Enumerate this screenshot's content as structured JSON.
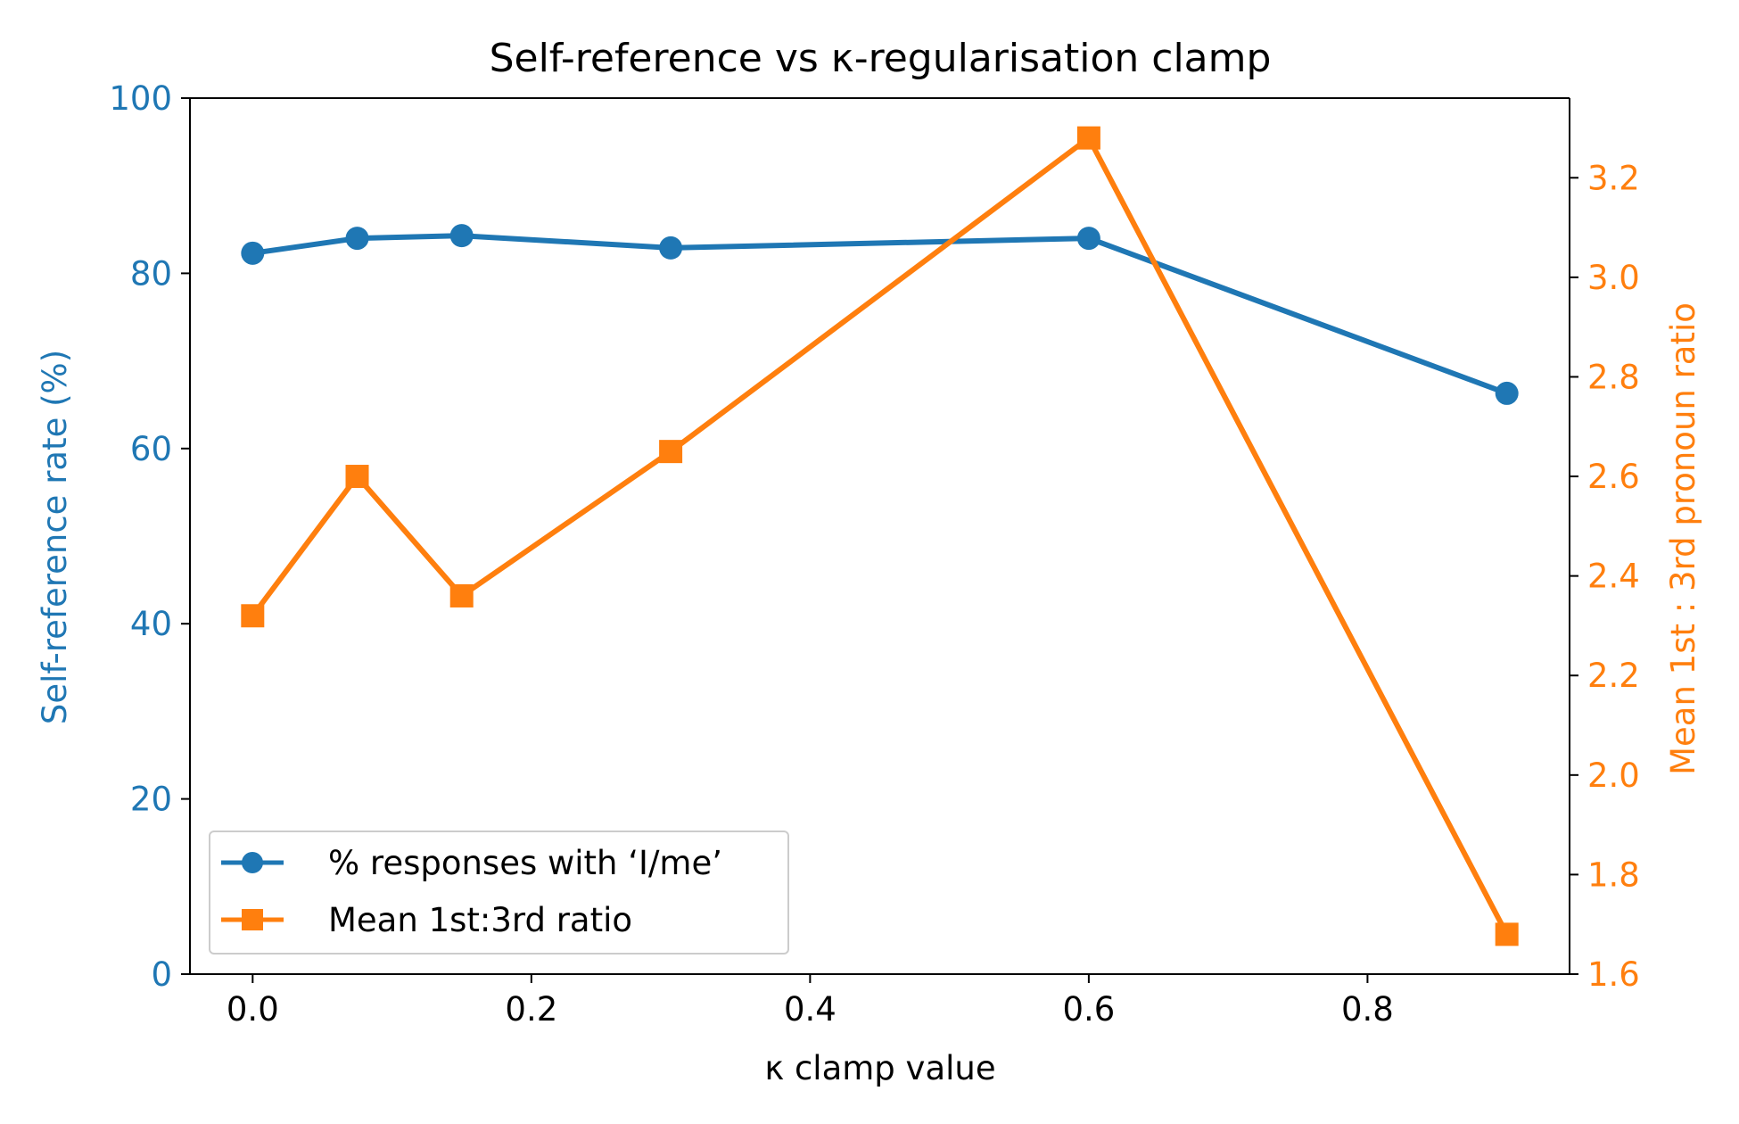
{
  "chart_data": {
    "type": "line",
    "title": "Self-reference vs κ-regularisation clamp",
    "xlabel": "κ clamp value",
    "ylabel_left": "Self-reference rate  (%)",
    "ylabel_right": "Mean 1st : 3rd pronoun ratio",
    "xlim": [
      -0.045,
      0.945
    ],
    "ylim_left": [
      0,
      100
    ],
    "ylim_right": [
      1.6,
      3.36
    ],
    "x_ticks": [
      "0.0",
      "0.2",
      "0.4",
      "0.6",
      "0.8"
    ],
    "y_ticks_left": [
      "0",
      "20",
      "40",
      "60",
      "80",
      "100"
    ],
    "y_ticks_right": [
      "1.6",
      "1.8",
      "2.0",
      "2.2",
      "2.4",
      "2.6",
      "2.8",
      "3.0",
      "3.2"
    ],
    "legend_position": "lower-left",
    "grid": false,
    "series": [
      {
        "name": "% responses with ‘I/me’",
        "axis": "left",
        "marker": "circle",
        "color": "#1f77b4",
        "x": [
          0.0,
          0.075,
          0.15,
          0.3,
          0.6,
          0.9
        ],
        "y": [
          82.3,
          84.0,
          84.3,
          82.9,
          84.0,
          66.3
        ]
      },
      {
        "name": "Mean 1st:3rd ratio",
        "axis": "right",
        "marker": "square",
        "color": "#ff7f0e",
        "x": [
          0.0,
          0.075,
          0.15,
          0.3,
          0.6,
          0.9
        ],
        "y": [
          2.32,
          2.6,
          2.36,
          2.65,
          3.28,
          1.68
        ]
      }
    ]
  }
}
